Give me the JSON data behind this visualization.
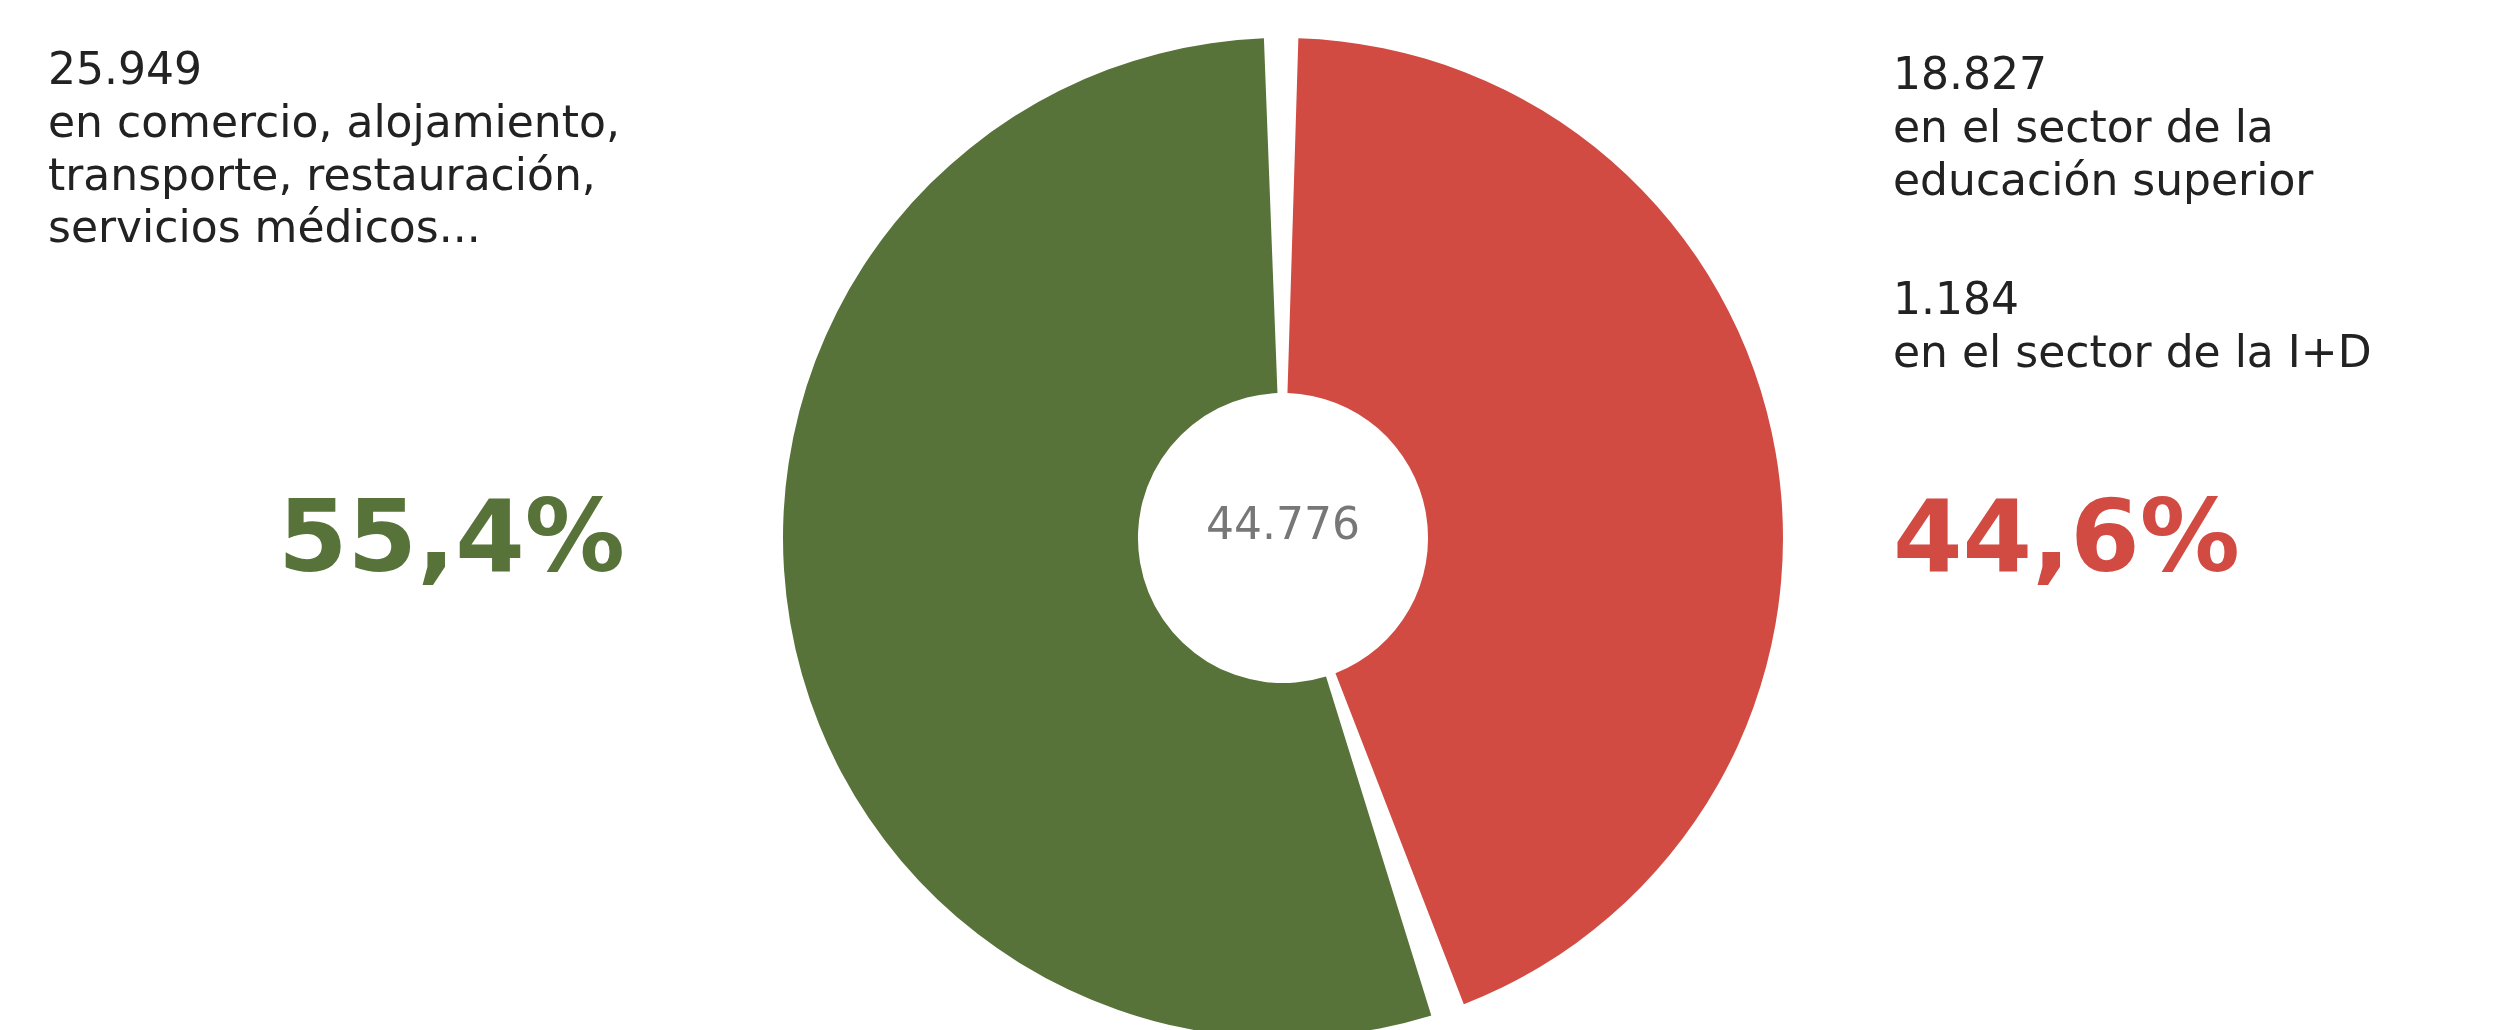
{
  "chart_data": {
    "type": "donut",
    "categories": [
      null,
      null
    ],
    "values": [
      44.6,
      55.4
    ],
    "colors": [
      "#d24b43",
      "#57733a"
    ],
    "value_labels": [
      "44,6%",
      "55,4%"
    ],
    "annotations": [
      "18.827\nen el sector de la\neducación superior",
      "1.184\nen el sector de la I+D",
      "25.949\nen comercio, alojamiento,\ntransporte, restauración,\nservicios médicos...",
      "44.776"
    ]
  }
}
